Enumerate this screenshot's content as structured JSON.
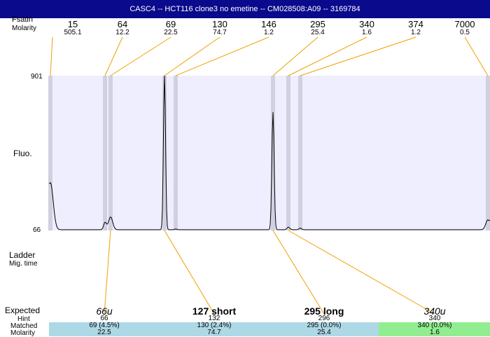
{
  "title": "CASC4 -- HCT116 clone3 no emetine -- CM028508:A09 -- 3169784",
  "header_labels": {
    "size_overlap": "Size",
    "size": "Molarity",
    "size_top": "Fsatin",
    "molarity": "Molarity"
  },
  "axis": {
    "y_top": "901",
    "y_bottom": "66",
    "y_label": "Fluo."
  },
  "ladder_labels": {
    "ladder": "Ladder",
    "mig_time": "Mig. time"
  },
  "row_labels": {
    "expected": "Expected",
    "hint": "Hint",
    "matched": "Matched",
    "molarity": "Molarity"
  },
  "peaks": [
    {
      "size": "15",
      "molarity": "505.1"
    },
    {
      "size": "64",
      "molarity": "12.2"
    },
    {
      "size": "69",
      "molarity": "22.5"
    },
    {
      "size": "130",
      "molarity": "74.7"
    },
    {
      "size": "146",
      "molarity": "1.2"
    },
    {
      "size": "295",
      "molarity": "25.4"
    },
    {
      "size": "340",
      "molarity": "1.6"
    },
    {
      "size": "374",
      "molarity": "1.2"
    },
    {
      "size": "7000",
      "molarity": "0.5"
    }
  ],
  "expected": [
    {
      "name": "66u",
      "style": "italic",
      "hint": "66",
      "matched": "69 (4.5%)",
      "molarity": "22.5",
      "color": "#add8e6"
    },
    {
      "name": "127 short",
      "style": "bold",
      "hint": "132",
      "matched": "130 (2.4%)",
      "molarity": "74.7",
      "color": "#add8e6"
    },
    {
      "name": "295 long",
      "style": "bold",
      "hint": "296",
      "matched": "295 (0.0%)",
      "molarity": "25.4",
      "color": "#add8e6"
    },
    {
      "name": "340u",
      "style": "italic",
      "hint": "340",
      "matched": "340 (0.0%)",
      "molarity": "1.6",
      "color": "#90ee90"
    }
  ],
  "colors": {
    "title_bg": "#0a0a8c",
    "plot_bg": "#eeeeff",
    "peak_band": "#d0d0e0",
    "connector": "#f0a000",
    "trace": "#000000"
  },
  "chart_data": {
    "type": "line",
    "title": "CASC4 -- HCT116 clone3 no emetine -- CM028508:A09 -- 3169784",
    "ylabel": "Fluo.",
    "ylim": [
      66,
      901
    ],
    "grid": false,
    "peaks_size_bp": [
      15,
      64,
      69,
      130,
      146,
      295,
      340,
      374,
      7000
    ],
    "peaks_molarity": [
      505.1,
      12.2,
      22.5,
      74.7,
      1.2,
      25.4,
      1.6,
      1.2,
      0.5
    ],
    "peak_heights_fluo": [
      320,
      105,
      135,
      901,
      70,
      700,
      80,
      75,
      120
    ]
  }
}
